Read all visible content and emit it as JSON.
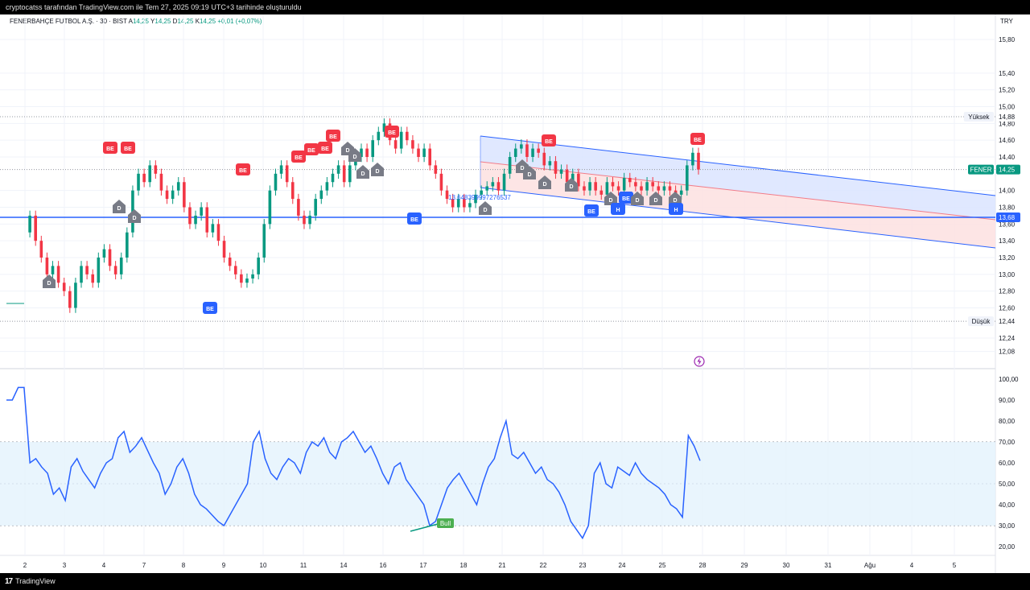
{
  "header": {
    "snapshot_text": "cryptocatss tarafından TradingView.com ile Tem 27, 2025 09:19 UTC+3 tarihinde oluşturuldu",
    "symbol": "FENERBAHÇE FUTBOL A.Ş. · 30 · BIST",
    "ohlc": {
      "a_label": "A",
      "a_value": "14,25",
      "y_label": "Y",
      "y_value": "14,25",
      "d_label": "D",
      "d_value": "14,25",
      "k_label": "K",
      "k_value": "14,25",
      "change": "+0,01 (+0,07%)"
    },
    "currency": "TRY"
  },
  "footer": {
    "brand": "TradingView"
  },
  "colors": {
    "up": "#089981",
    "down": "#f23645",
    "blue": "#2962ff",
    "rsi_band": "#e3f2fd",
    "channel_upper": "#dbe4ff",
    "channel_lower": "#fde0e0",
    "badge_be_red": "#f23645",
    "badge_be_blue": "#2962ff",
    "badge_d": "#787b86"
  },
  "chart_data": [
    {
      "type": "candlestick",
      "title": "",
      "y_ticks": [
        "15,80",
        "15,40",
        "15,20",
        "15,00",
        "14,80",
        "14,60",
        "14,40",
        "14,00",
        "13,80",
        "13,60",
        "13,40",
        "13,20",
        "13,00",
        "12,80",
        "12,60",
        "12,24",
        "12,08"
      ],
      "ylim": [
        12.0,
        16.0
      ],
      "x_ticks": [
        "2",
        "3",
        "4",
        "7",
        "8",
        "9",
        "10",
        "11",
        "14",
        "16",
        "17",
        "18",
        "21",
        "22",
        "23",
        "24",
        "25",
        "28",
        "29",
        "30",
        "31",
        "Ağu",
        "4",
        "5"
      ],
      "price_labels": [
        {
          "label": "Yüksek",
          "value": "14,88"
        },
        {
          "label": "FENER",
          "value": "14,25"
        },
        {
          "label": "",
          "value": "13,68"
        },
        {
          "label": "Düşük",
          "value": "12,44"
        }
      ],
      "horizontal_line": 13.68,
      "annotation": "13.648399997276537",
      "markers": [
        "BE",
        "BE",
        "D",
        "D",
        "D",
        "BE",
        "BE",
        "BE",
        "BE",
        "BE",
        "BE",
        "BE",
        "D",
        "D",
        "D",
        "D",
        "BE",
        "BE",
        "D",
        "BE",
        "D",
        "D",
        "D",
        "D",
        "BE",
        "D",
        "BE",
        "D",
        "D",
        "D",
        "H",
        "BE",
        "D",
        "H",
        "BE"
      ],
      "close_series": [
        13.5,
        13.7,
        13.4,
        13.2,
        13.0,
        13.1,
        12.9,
        12.8,
        12.6,
        12.9,
        13.1,
        13.0,
        12.9,
        13.2,
        13.3,
        13.1,
        13.0,
        13.2,
        13.5,
        14.0,
        14.2,
        14.1,
        14.3,
        14.2,
        14.0,
        13.9,
        14.0,
        14.1,
        13.8,
        13.6,
        13.7,
        13.8,
        13.5,
        13.6,
        13.4,
        13.2,
        13.1,
        13.0,
        12.9,
        12.95,
        13.0,
        13.2,
        13.6,
        14.0,
        14.2,
        14.3,
        14.1,
        13.9,
        13.7,
        13.6,
        13.7,
        13.9,
        14.0,
        14.1,
        14.2,
        14.3,
        14.1,
        14.3,
        14.4,
        14.5,
        14.4,
        14.6,
        14.7,
        14.8,
        14.6,
        14.5,
        14.7,
        14.6,
        14.5,
        14.4,
        14.5,
        14.3,
        14.2,
        14.0,
        13.9,
        13.8,
        13.9,
        13.8,
        13.85,
        13.95,
        14.0,
        14.05,
        14.1,
        14.0,
        14.2,
        14.4,
        14.5,
        14.55,
        14.4,
        14.5,
        14.45,
        14.3,
        14.35,
        14.2,
        14.25,
        14.1,
        14.2,
        14.05,
        14.0,
        14.1,
        14.0,
        13.95,
        14.1,
        14.05,
        14.0,
        14.15,
        14.1,
        14.05,
        14.0,
        14.1,
        14.05,
        14.0,
        14.05,
        14.0,
        13.95,
        14.0,
        14.3,
        14.45,
        14.25
      ]
    },
    {
      "type": "line",
      "title": "",
      "y_ticks": [
        "100,00",
        "90,00",
        "80,00",
        "70,00",
        "60,00",
        "50,00",
        "40,00",
        "30,00",
        "20,00"
      ],
      "ylim": [
        15,
        105
      ],
      "band": [
        30,
        70
      ],
      "label_bull": "Bull",
      "rsi_series": [
        90,
        90,
        96,
        96,
        60,
        62,
        58,
        55,
        45,
        48,
        42,
        58,
        62,
        56,
        52,
        48,
        55,
        60,
        62,
        72,
        75,
        65,
        68,
        72,
        66,
        60,
        55,
        45,
        50,
        58,
        62,
        55,
        45,
        40,
        38,
        35,
        32,
        30,
        35,
        40,
        45,
        50,
        70,
        75,
        62,
        55,
        52,
        58,
        62,
        60,
        55,
        65,
        70,
        68,
        72,
        65,
        62,
        70,
        72,
        75,
        70,
        65,
        68,
        62,
        55,
        50,
        58,
        60,
        52,
        48,
        44,
        40,
        30,
        32,
        40,
        48,
        52,
        55,
        50,
        45,
        40,
        50,
        58,
        62,
        72,
        80,
        64,
        62,
        65,
        60,
        55,
        58,
        52,
        50,
        46,
        40,
        32,
        28,
        24,
        30,
        55,
        60,
        50,
        48,
        58,
        56,
        54,
        60,
        55,
        52,
        50,
        48,
        45,
        40,
        38,
        34,
        73,
        68,
        61
      ]
    }
  ]
}
